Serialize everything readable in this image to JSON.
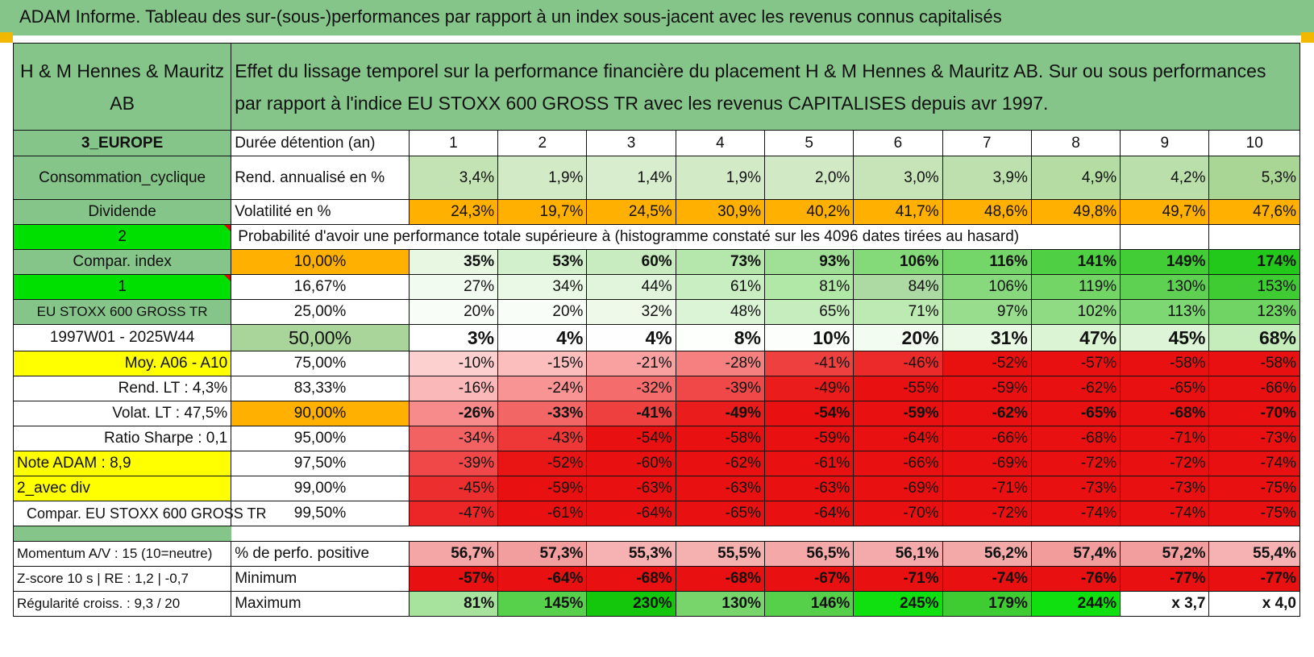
{
  "title": "ADAM Informe. Tableau des sur-(sous-)performances par rapport à un index sous-jacent avec les revenus connus capitalisés",
  "header": {
    "company": "H & M Hennes & Mauritz AB",
    "description": "Effet du lissage temporel sur la performance financière du placement H & M Hennes & Mauritz AB. Sur ou sous performances par rapport à l'indice EU STOXX 600 GROSS TR avec les revenus CAPITALISES depuis avr 1997."
  },
  "side": {
    "region": "3_EUROPE",
    "sector": "Consommation_cyclique",
    "dividend_label": "Dividende",
    "selector_top": "2",
    "compar_index": "Compar. index",
    "selector_bottom": "1",
    "index_name": "EU STOXX 600 GROSS TR",
    "period": "1997W01 - 2025W44",
    "moy": "Moy. A06 - A10",
    "rend_lt": "Rend. LT :    4,3%",
    "volat_lt": "Volat. LT :    47,5%",
    "sharpe": "Ratio Sharpe :    0,1",
    "note": "Note ADAM : 8,9",
    "avec_div": "2_avec div",
    "compar_full": "Compar. EU STOXX 600 GROSS TR"
  },
  "metrics": {
    "duration_label": "Durée détention (an)",
    "durations": [
      "1",
      "2",
      "3",
      "4",
      "5",
      "6",
      "7",
      "8",
      "9",
      "10"
    ],
    "rend_label": "Rend. annualisé en %",
    "rend": [
      "3,4%",
      "1,9%",
      "1,4%",
      "1,9%",
      "2,0%",
      "3,0%",
      "3,9%",
      "4,9%",
      "4,2%",
      "5,3%"
    ],
    "vol_label": "Volatilité en %",
    "vol": [
      "24,3%",
      "19,7%",
      "24,5%",
      "30,9%",
      "40,2%",
      "41,7%",
      "48,6%",
      "49,8%",
      "49,7%",
      "47,6%"
    ],
    "prob_title": "Probabilité d'avoir une performance totale supérieure à (histogramme constaté sur les 4096 dates tirées au hasard)"
  },
  "probability_rows": [
    {
      "pct": "10,00%",
      "values": [
        "35%",
        "53%",
        "60%",
        "73%",
        "93%",
        "106%",
        "116%",
        "141%",
        "149%",
        "174%"
      ],
      "colors": [
        "#e7f7e2",
        "#d2f0cb",
        "#c8ecc0",
        "#b5e6ab",
        "#a0e096",
        "#84da78",
        "#74d568",
        "#4fcf43",
        "#42cd36",
        "#22c81a"
      ]
    },
    {
      "pct": "16,67%",
      "values": [
        "27%",
        "34%",
        "44%",
        "61%",
        "81%",
        "84%",
        "106%",
        "119%",
        "130%",
        "153%"
      ],
      "colors": [
        "#f2fbf0",
        "#eaf8e6",
        "#e0f5db",
        "#c9eec1",
        "#b1e7a7",
        "#add9a3",
        "#88d97d",
        "#72d566",
        "#5ed152",
        "#3ecc32"
      ]
    },
    {
      "pct": "25,00%",
      "values": [
        "20%",
        "20%",
        "32%",
        "48%",
        "65%",
        "71%",
        "97%",
        "102%",
        "113%",
        "123%"
      ],
      "colors": [
        "#f8fdf7",
        "#f8fdf7",
        "#eef9ea",
        "#dcf4d6",
        "#c6edbd",
        "#bde9b3",
        "#98dc8d",
        "#8fdb84",
        "#7dd772",
        "#6fd463"
      ]
    },
    {
      "pct": "50,00%",
      "values": [
        "3%",
        "4%",
        "4%",
        "8%",
        "10%",
        "20%",
        "31%",
        "47%",
        "45%",
        "68%"
      ],
      "colors": [
        "#ffffff",
        "#fffefe",
        "#fffefe",
        "#fdfffc",
        "#fbfefa",
        "#f3fcf1",
        "#eaf8e6",
        "#dbf4d4",
        "#ddf4d7",
        "#c4edbb"
      ]
    },
    {
      "pct": "75,00%",
      "values": [
        "-10%",
        "-15%",
        "-21%",
        "-28%",
        "-41%",
        "-46%",
        "-52%",
        "-57%",
        "-58%",
        "-58%"
      ],
      "colors": [
        "#fdd0d0",
        "#fcbdbd",
        "#f9a0a0",
        "#f67f7f",
        "#ef4040",
        "#ec2a2a",
        "#e91010",
        "#e81010",
        "#e81010",
        "#e81010"
      ]
    },
    {
      "pct": "83,33%",
      "values": [
        "-16%",
        "-24%",
        "-32%",
        "-39%",
        "-49%",
        "-55%",
        "-59%",
        "-62%",
        "-65%",
        "-66%"
      ],
      "colors": [
        "#fbb8b8",
        "#f89494",
        "#f46c6c",
        "#f04848",
        "#eb1c1c",
        "#e81010",
        "#e81010",
        "#e81010",
        "#e81010",
        "#e81010"
      ]
    },
    {
      "pct": "90,00%",
      "values": [
        "-26%",
        "-33%",
        "-41%",
        "-49%",
        "-54%",
        "-59%",
        "-62%",
        "-65%",
        "-68%",
        "-70%"
      ],
      "colors": [
        "#f78a8a",
        "#f36666",
        "#ef4040",
        "#eb1c1c",
        "#e81010",
        "#e81010",
        "#e81010",
        "#e81010",
        "#e81010",
        "#e81010"
      ]
    },
    {
      "pct": "95,00%",
      "values": [
        "-34%",
        "-43%",
        "-54%",
        "-58%",
        "-59%",
        "-64%",
        "-66%",
        "-68%",
        "-71%",
        "-73%"
      ],
      "colors": [
        "#f36262",
        "#ee3838",
        "#e81010",
        "#e81010",
        "#e81010",
        "#e81010",
        "#e81010",
        "#e81010",
        "#e81010",
        "#e81010"
      ]
    },
    {
      "pct": "97,50%",
      "values": [
        "-39%",
        "-52%",
        "-60%",
        "-62%",
        "-61%",
        "-66%",
        "-69%",
        "-72%",
        "-72%",
        "-74%"
      ],
      "colors": [
        "#f04848",
        "#e91414",
        "#e81010",
        "#e81010",
        "#e81010",
        "#e81010",
        "#e81010",
        "#e81010",
        "#e81010",
        "#e81010"
      ]
    },
    {
      "pct": "99,00%",
      "values": [
        "-45%",
        "-59%",
        "-63%",
        "-63%",
        "-63%",
        "-69%",
        "-71%",
        "-73%",
        "-73%",
        "-75%"
      ],
      "colors": [
        "#ed2e2e",
        "#e81010",
        "#e81010",
        "#e81010",
        "#e81010",
        "#e81010",
        "#e81010",
        "#e81010",
        "#e81010",
        "#e81010"
      ]
    },
    {
      "pct": "99,50%",
      "values": [
        "-47%",
        "-61%",
        "-64%",
        "-65%",
        "-64%",
        "-70%",
        "-72%",
        "-74%",
        "-74%",
        "-75%"
      ],
      "colors": [
        "#ec2626",
        "#e81010",
        "#e81010",
        "#e81010",
        "#e81010",
        "#e81010",
        "#e81010",
        "#e81010",
        "#e81010",
        "#e81010"
      ]
    }
  ],
  "bottom": {
    "momentum": "Momentum A/V : 15 (10=neutre)",
    "zscore": "Z-score 10 s | RE : 1,2 | -0,7",
    "regularite": "Régularité croiss. : 9,3 / 20",
    "pos_label": "% de perfo. positive",
    "pos": [
      "56,7%",
      "57,3%",
      "55,3%",
      "55,5%",
      "56,5%",
      "56,1%",
      "56,2%",
      "57,4%",
      "57,2%",
      "55,4%"
    ],
    "min_label": "Minimum",
    "min": [
      "-57%",
      "-64%",
      "-68%",
      "-68%",
      "-67%",
      "-71%",
      "-74%",
      "-76%",
      "-77%",
      "-77%"
    ],
    "max_label": "Maximum",
    "max": [
      "81%",
      "145%",
      "230%",
      "130%",
      "146%",
      "245%",
      "179%",
      "244%",
      "x 3,7",
      "x 4,0"
    ],
    "max_colors": [
      "#a8e39e",
      "#57d04b",
      "#14c70c",
      "#78d56c",
      "#56d04a",
      "#10e010",
      "#3ecc32",
      "#10e010",
      "#ffffff",
      "#ffffff"
    ]
  }
}
